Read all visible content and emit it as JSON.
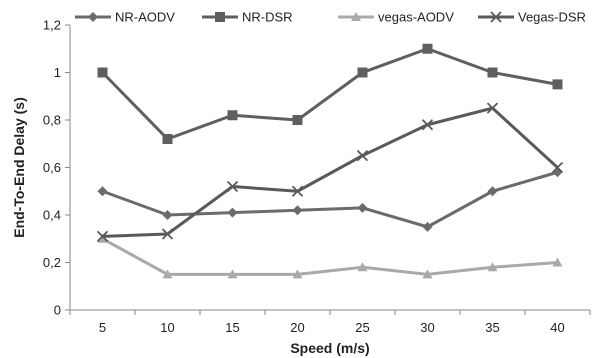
{
  "chart_data": {
    "type": "line",
    "title": "",
    "xlabel": "Speed (m/s)",
    "ylabel": "End-To-End Delay (s)",
    "categories": [
      "5",
      "10",
      "15",
      "20",
      "25",
      "30",
      "35",
      "40"
    ],
    "ylim": [
      0,
      1.2
    ],
    "yticks": [
      "0",
      "0,2",
      "0,4",
      "0,6",
      "0,8",
      "1",
      "1,2"
    ],
    "grid": false,
    "legend_position": "top",
    "series": [
      {
        "name": "NR-AODV",
        "marker": "diamond",
        "color": "#6b6b6b",
        "values": [
          0.5,
          0.4,
          0.41,
          0.42,
          0.43,
          0.35,
          0.5,
          0.58
        ]
      },
      {
        "name": "NR-DSR",
        "marker": "square",
        "color": "#5f5f5f",
        "values": [
          1.0,
          0.72,
          0.82,
          0.8,
          1.0,
          1.1,
          1.0,
          0.95
        ]
      },
      {
        "name": "vegas-AODV",
        "marker": "triangle",
        "color": "#a9a9a9",
        "values": [
          0.3,
          0.15,
          0.15,
          0.15,
          0.18,
          0.15,
          0.18,
          0.2
        ]
      },
      {
        "name": "Vegas-DSR",
        "marker": "cross",
        "color": "#5a5a5a",
        "values": [
          0.31,
          0.32,
          0.52,
          0.5,
          0.65,
          0.78,
          0.85,
          0.6
        ]
      }
    ]
  }
}
